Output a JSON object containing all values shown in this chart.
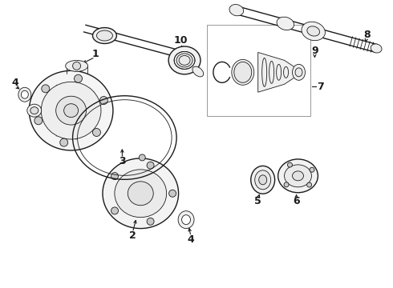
{
  "bg_color": "#ffffff",
  "lc": "#1a1a1a",
  "figsize": [
    4.9,
    3.6
  ],
  "dpi": 100,
  "lw_thin": 0.6,
  "lw_med": 1.0,
  "lw_thick": 1.6
}
